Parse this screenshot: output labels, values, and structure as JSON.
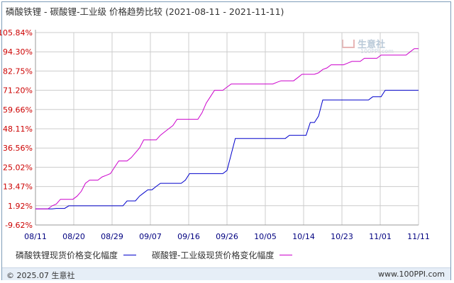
{
  "header": {
    "title": "磷酸铁锂 - 碳酸锂-工业级 价格趋势比较",
    "date_range": "(2021-08-11 - 2021-11-11)"
  },
  "watermark": {
    "name": "生意社",
    "site": "100PPI.com"
  },
  "footer": {
    "copyright": "© 2025.07 生意社",
    "url": "www.100PPI.com"
  },
  "colors": {
    "series1": "#0000cc",
    "series2": "#cc00cc",
    "grid": "#cccccc",
    "axis": "#999999"
  },
  "chart_data": {
    "type": "line",
    "title": "磷酸铁锂 - 碳酸锂-工业级 价格趋势比较",
    "xlabel": "",
    "ylabel": "",
    "x_ticks": [
      "08/11",
      "08/20",
      "08/29",
      "09/07",
      "09/16",
      "09/26",
      "10/05",
      "10/14",
      "10/23",
      "11/01",
      "11/11"
    ],
    "y_ticks": [
      "105.84%",
      "94.30%",
      "82.75%",
      "71.20%",
      "59.66%",
      "48.11%",
      "36.56%",
      "25.02%",
      "13.47%",
      "1.92%",
      "-9.62%"
    ],
    "ylim": [
      -9.62,
      105.84
    ],
    "x_range": [
      "2021-08-11",
      "2021-11-11"
    ],
    "legend_position": "bottom",
    "grid": true,
    "series": [
      {
        "name": "磷酸铁锂现货价格变化幅度",
        "color": "#0000cc",
        "points": [
          [
            "2021-08-11",
            0
          ],
          [
            "2021-08-15",
            0
          ],
          [
            "2021-08-16",
            0.3
          ],
          [
            "2021-08-18",
            0.3
          ],
          [
            "2021-08-19",
            1.9
          ],
          [
            "2021-09-01",
            1.9
          ],
          [
            "2021-09-02",
            4.8
          ],
          [
            "2021-09-04",
            4.8
          ],
          [
            "2021-09-05",
            7.7
          ],
          [
            "2021-09-06",
            9.6
          ],
          [
            "2021-09-07",
            11.5
          ],
          [
            "2021-09-08",
            11.5
          ],
          [
            "2021-09-09",
            13.5
          ],
          [
            "2021-09-10",
            15.4
          ],
          [
            "2021-09-15",
            15.4
          ],
          [
            "2021-09-16",
            17.3
          ],
          [
            "2021-09-17",
            21.2
          ],
          [
            "2021-09-25",
            21.2
          ],
          [
            "2021-09-26",
            23.1
          ],
          [
            "2021-09-28",
            42.3
          ],
          [
            "2021-10-10",
            42.3
          ],
          [
            "2021-10-11",
            44.2
          ],
          [
            "2021-10-15",
            44.2
          ],
          [
            "2021-10-16",
            51.9
          ],
          [
            "2021-10-17",
            51.9
          ],
          [
            "2021-10-18",
            55.8
          ],
          [
            "2021-10-19",
            65.4
          ],
          [
            "2021-10-30",
            65.4
          ],
          [
            "2021-10-31",
            67.3
          ],
          [
            "2021-11-02",
            67.3
          ],
          [
            "2021-11-03",
            71.2
          ],
          [
            "2021-11-11",
            71.2
          ]
        ]
      },
      {
        "name": "碳酸锂-工业级现货价格变化幅度",
        "color": "#cc00cc",
        "points": [
          [
            "2021-08-11",
            0
          ],
          [
            "2021-08-14",
            0
          ],
          [
            "2021-08-15",
            1.9
          ],
          [
            "2021-08-16",
            2.9
          ],
          [
            "2021-08-17",
            5.8
          ],
          [
            "2021-08-20",
            5.8
          ],
          [
            "2021-08-21",
            7.7
          ],
          [
            "2021-08-22",
            10.6
          ],
          [
            "2021-08-23",
            15.4
          ],
          [
            "2021-08-24",
            17.3
          ],
          [
            "2021-08-26",
            17.3
          ],
          [
            "2021-08-27",
            19.2
          ],
          [
            "2021-08-28",
            20.2
          ],
          [
            "2021-08-29",
            21.2
          ],
          [
            "2021-08-30",
            25.0
          ],
          [
            "2021-08-31",
            28.8
          ],
          [
            "2021-09-02",
            28.8
          ],
          [
            "2021-09-03",
            30.8
          ],
          [
            "2021-09-04",
            33.7
          ],
          [
            "2021-09-05",
            36.6
          ],
          [
            "2021-09-06",
            41.4
          ],
          [
            "2021-09-09",
            41.4
          ],
          [
            "2021-09-10",
            44.2
          ],
          [
            "2021-09-11",
            46.2
          ],
          [
            "2021-09-12",
            48.1
          ],
          [
            "2021-09-13",
            50.0
          ],
          [
            "2021-09-14",
            53.8
          ],
          [
            "2021-09-19",
            53.8
          ],
          [
            "2021-09-20",
            57.7
          ],
          [
            "2021-09-21",
            63.5
          ],
          [
            "2021-09-22",
            67.3
          ],
          [
            "2021-09-23",
            71.2
          ],
          [
            "2021-09-25",
            71.2
          ],
          [
            "2021-09-26",
            73.1
          ],
          [
            "2021-09-27",
            75.0
          ],
          [
            "2021-10-07",
            75.0
          ],
          [
            "2021-10-08",
            76.0
          ],
          [
            "2021-10-09",
            76.9
          ],
          [
            "2021-10-12",
            76.9
          ],
          [
            "2021-10-13",
            78.8
          ],
          [
            "2021-10-14",
            80.8
          ],
          [
            "2021-10-17",
            80.8
          ],
          [
            "2021-10-18",
            81.7
          ],
          [
            "2021-10-19",
            83.7
          ],
          [
            "2021-10-20",
            84.6
          ],
          [
            "2021-10-21",
            86.5
          ],
          [
            "2021-10-24",
            86.5
          ],
          [
            "2021-10-25",
            87.5
          ],
          [
            "2021-10-26",
            88.5
          ],
          [
            "2021-10-28",
            88.5
          ],
          [
            "2021-10-29",
            90.4
          ],
          [
            "2021-11-01",
            90.4
          ],
          [
            "2021-11-02",
            92.3
          ],
          [
            "2021-11-08",
            92.3
          ],
          [
            "2021-11-09",
            94.3
          ],
          [
            "2021-11-10",
            96.2
          ],
          [
            "2021-11-11",
            96.2
          ]
        ]
      }
    ]
  }
}
